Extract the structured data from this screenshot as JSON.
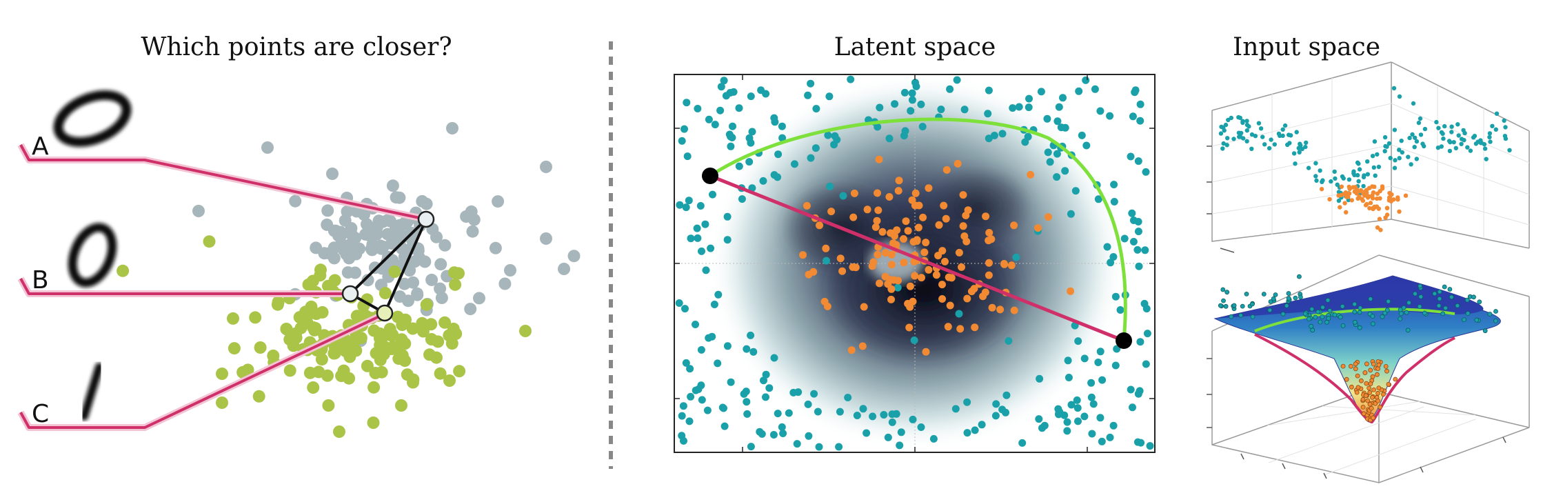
{
  "panels": {
    "left": {
      "title": "Which points are closer?",
      "labels": [
        "A",
        "B",
        "C"
      ]
    },
    "middle": {
      "title": "Latent space"
    },
    "right": {
      "title": "Input space"
    }
  },
  "colors": {
    "gray_cluster": "#a7b6bb",
    "green_cluster": "#a9c447",
    "teal_points": "#1aa0a8",
    "orange_points": "#f28a33",
    "pink_line": "#d0306a",
    "green_geodesic": "#7ee03a",
    "divider": "#888888"
  }
}
